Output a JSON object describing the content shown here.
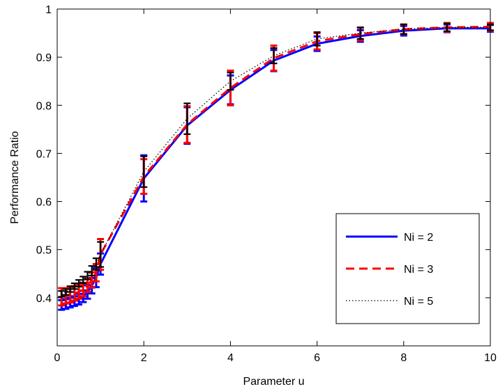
{
  "chart_data": {
    "type": "line",
    "title": "",
    "xlabel": "Parameter u",
    "ylabel": "Performance Ratio",
    "xlim": [
      0,
      10
    ],
    "ylim": [
      0.3,
      1.0
    ],
    "xticks": [
      0,
      2,
      4,
      6,
      8,
      10
    ],
    "yticks": [
      0.4,
      0.5,
      0.6,
      0.7,
      0.8,
      0.9,
      1.0
    ],
    "ytick_labels": [
      "0.4",
      "0.5",
      "0.6",
      "0.7",
      "0.8",
      "0.9",
      "1"
    ],
    "grid": false,
    "legend_position": "bottom-right",
    "x": [
      0.1,
      0.2,
      0.3,
      0.4,
      0.5,
      0.6,
      0.7,
      0.8,
      0.9,
      1,
      2,
      3,
      4,
      5,
      6,
      7,
      8,
      9,
      10
    ],
    "series": [
      {
        "name": "Ni = 2",
        "color": "#0000ff",
        "dash": "solid",
        "values": [
          0.385,
          0.387,
          0.39,
          0.393,
          0.397,
          0.403,
          0.412,
          0.425,
          0.442,
          0.47,
          0.648,
          0.758,
          0.832,
          0.893,
          0.928,
          0.944,
          0.955,
          0.96,
          0.96
        ],
        "err": [
          0.01,
          0.01,
          0.01,
          0.01,
          0.011,
          0.012,
          0.014,
          0.016,
          0.02,
          0.022,
          0.048,
          0.038,
          0.03,
          0.022,
          0.015,
          0.012,
          0.01,
          0.008,
          0.007
        ]
      },
      {
        "name": "Ni = 3",
        "color": "#ff0000",
        "dash": "dashed",
        "values": [
          0.402,
          0.404,
          0.406,
          0.409,
          0.412,
          0.417,
          0.426,
          0.437,
          0.452,
          0.49,
          0.652,
          0.76,
          0.836,
          0.898,
          0.933,
          0.948,
          0.958,
          0.962,
          0.963
        ],
        "err": [
          0.018,
          0.016,
          0.016,
          0.015,
          0.014,
          0.014,
          0.014,
          0.016,
          0.018,
          0.032,
          0.036,
          0.038,
          0.036,
          0.026,
          0.017,
          0.013,
          0.01,
          0.009,
          0.008
        ]
      },
      {
        "name": "Ni = 5",
        "color": "#000000",
        "dash": "dotted",
        "values": [
          0.408,
          0.412,
          0.418,
          0.424,
          0.43,
          0.437,
          0.446,
          0.456,
          0.47,
          0.49,
          0.662,
          0.772,
          0.85,
          0.903,
          0.938,
          0.95,
          0.958,
          0.962,
          0.962
        ],
        "err": [
          0.006,
          0.006,
          0.006,
          0.006,
          0.007,
          0.007,
          0.008,
          0.01,
          0.012,
          0.026,
          0.032,
          0.032,
          0.018,
          0.016,
          0.014,
          0.012,
          0.01,
          0.008,
          0.006
        ]
      }
    ]
  }
}
